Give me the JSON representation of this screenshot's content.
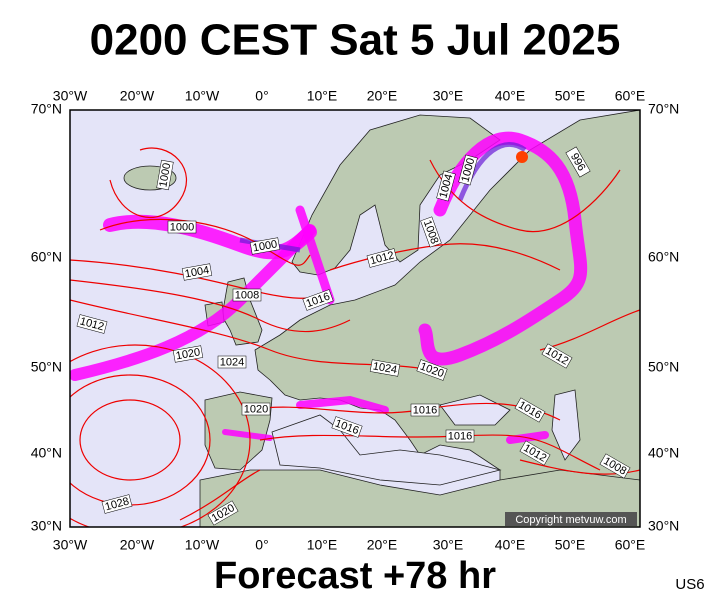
{
  "title": "0200 CEST Sat 5 Jul 2025",
  "footer": "Forecast +78 hr",
  "model": "US6",
  "copyright": "Copyright metvuw.com",
  "longitude_labels": [
    "30°W",
    "20°W",
    "10°W",
    "0°",
    "10°E",
    "20°E",
    "30°E",
    "40°E",
    "50°E",
    "60°E"
  ],
  "latitude_labels": [
    "70°N",
    "60°N",
    "50°N",
    "40°N",
    "30°N"
  ],
  "isobar_labels": [
    "1000",
    "1000",
    "1000",
    "1004",
    "1008",
    "1012",
    "1016",
    "1012",
    "1020",
    "1024",
    "1024",
    "1020",
    "1020",
    "1016",
    "1016",
    "1016",
    "1016",
    "1012",
    "1012",
    "1008",
    "1028",
    "1020",
    "1004",
    "1000",
    "1008",
    "996"
  ]
}
